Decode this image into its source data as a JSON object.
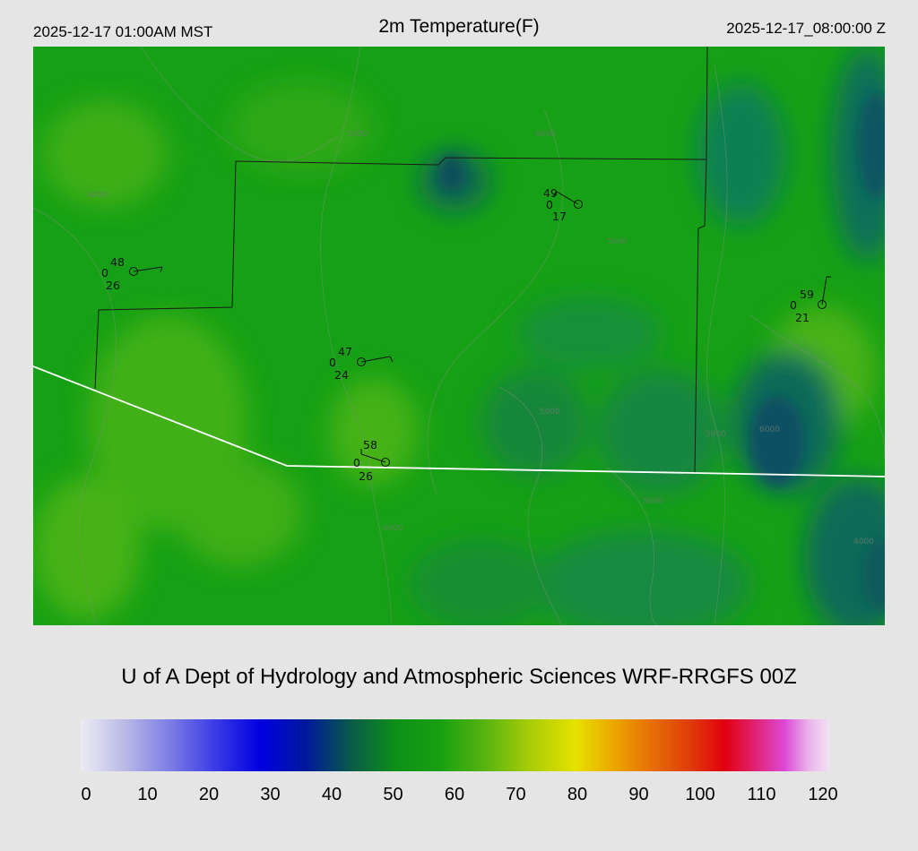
{
  "header": {
    "local_time": "2025-12-17 01:00AM MST",
    "title": "2m Temperature(F)",
    "utc_time": "2025-12-17_08:00:00 Z"
  },
  "stations": [
    {
      "temp": "48",
      "mid": "0",
      "dew": "26"
    },
    {
      "temp": "49",
      "mid": "0",
      "dew": "17"
    },
    {
      "temp": "47",
      "mid": "0",
      "dew": "24"
    },
    {
      "temp": "58",
      "mid": "0",
      "dew": "26"
    },
    {
      "temp": "59",
      "mid": "0",
      "dew": "21"
    }
  ],
  "contour_labels": [
    "4000",
    "5000",
    "6000",
    "5000",
    "5000",
    "4000",
    "5000",
    "6000",
    "4000",
    "5000"
  ],
  "credit": "U of A Dept of Hydrology and Atmospheric Sciences WRF-RRGFS 00Z",
  "colorbar": {
    "ticks": [
      "0",
      "10",
      "20",
      "30",
      "40",
      "50",
      "60",
      "70",
      "80",
      "90",
      "100",
      "110",
      "120"
    ]
  },
  "colors": {
    "background": "#e5e5e5",
    "map_green": "#15a316",
    "map_dark_teal": "#116a55",
    "state_border": "#ffffff",
    "county_border": "#1a1a1a"
  }
}
